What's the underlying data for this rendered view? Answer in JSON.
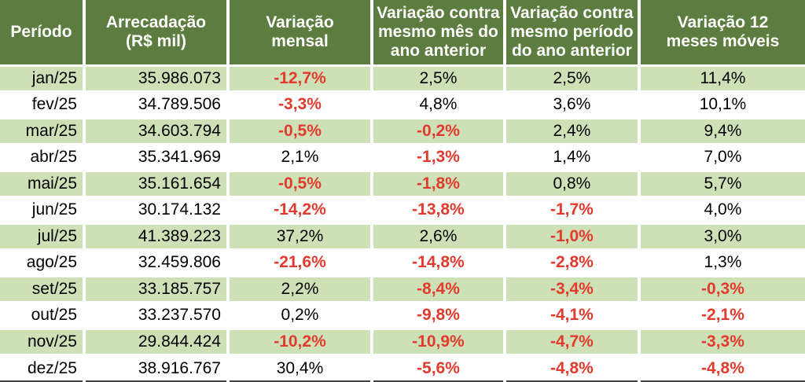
{
  "colors": {
    "header_bg": "#5c7d3f",
    "header_text": "#ffffff",
    "row_alt_bg": "#cde0b6",
    "row_bg": "#ffffff",
    "text": "#000000",
    "negative": "#e23b2e",
    "grid": "#ffffff",
    "bottom_border": "#444444"
  },
  "chart_data": {
    "type": "table",
    "columns": [
      "Período",
      "Arrecadação\n(R$ mil)",
      "Variação\nmensal",
      "Variação contra\nmesmo mês do\nano anterior",
      "Variação contra\nmesmo período\ndo ano anterior",
      "Variação 12\nmeses móveis"
    ],
    "column_keys": [
      "periodo",
      "arrecadacao",
      "variacao-mensal",
      "variacao-mes-ano-anterior",
      "variacao-periodo-ano-anterior",
      "variacao-12-meses-moveis"
    ],
    "rows": [
      [
        "jan/25",
        "35.986.073",
        "-12,7%",
        "2,5%",
        "2,5%",
        "11,4%"
      ],
      [
        "fev/25",
        "34.789.506",
        "-3,3%",
        "4,8%",
        "3,6%",
        "10,1%"
      ],
      [
        "mar/25",
        "34.603.794",
        "-0,5%",
        "-0,2%",
        "2,4%",
        "9,4%"
      ],
      [
        "abr/25",
        "35.341.969",
        "2,1%",
        "-1,3%",
        "1,4%",
        "7,0%"
      ],
      [
        "mai/25",
        "35.161.654",
        "-0,5%",
        "-1,8%",
        "0,8%",
        "5,7%"
      ],
      [
        "jun/25",
        "30.174.132",
        "-14,2%",
        "-13,8%",
        "-1,7%",
        "4,0%"
      ],
      [
        "jul/25",
        "41.389.223",
        "37,2%",
        "2,6%",
        "-1,0%",
        "3,0%"
      ],
      [
        "ago/25",
        "32.459.806",
        "-21,6%",
        "-14,8%",
        "-2,8%",
        "1,3%"
      ],
      [
        "set/25",
        "33.185.757",
        "2,2%",
        "-8,4%",
        "-3,4%",
        "-0,3%"
      ],
      [
        "out/25",
        "33.237.570",
        "0,2%",
        "-9,8%",
        "-4,1%",
        "-2,1%"
      ],
      [
        "nov/25",
        "29.844.424",
        "-10,2%",
        "-10,9%",
        "-4,7%",
        "-3,3%"
      ],
      [
        "dez/25",
        "38.916.767",
        "30,4%",
        "-5,6%",
        "-4,8%",
        "-4,8%"
      ]
    ],
    "layout": {
      "zebra": "odd rows light green, even rows white",
      "negative_values": "bold red",
      "column_widths_pct": [
        10.45,
        17.87,
        17.87,
        16.5,
        16.7,
        20.61
      ]
    }
  }
}
